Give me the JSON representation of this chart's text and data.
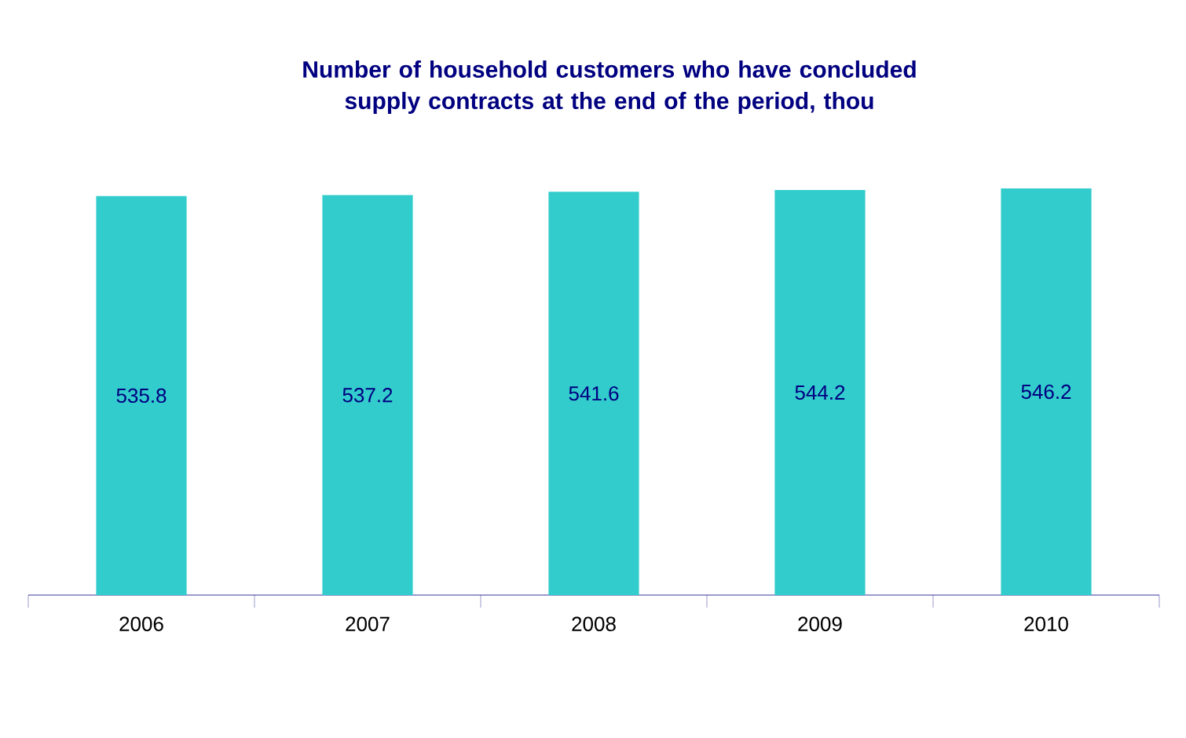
{
  "chart_data": {
    "type": "bar",
    "title": "Number of household customers who have concluded supply contracts at the end of the period, thou",
    "categories": [
      "2006",
      "2007",
      "2008",
      "2009",
      "2010"
    ],
    "values": [
      535.8,
      537.2,
      541.6,
      544.2,
      546.2
    ],
    "color": "#33cccc",
    "data_labels": true
  }
}
